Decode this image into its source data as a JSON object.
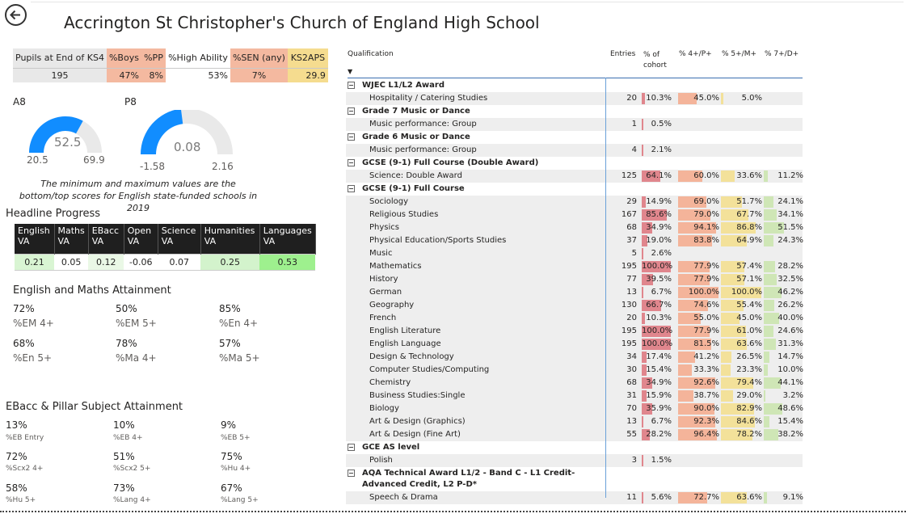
{
  "header": {
    "title": "Accrington St Christopher's Church of England High School"
  },
  "pupils": {
    "headers": [
      "Pupils at End of KS4",
      "%Boys",
      "%PP",
      "%High Ability",
      "%SEN (any)",
      "KS2APS"
    ],
    "values": [
      "195",
      "47%",
      "8%",
      "53%",
      "7%",
      "29.9"
    ],
    "colors": {
      "grey": "#e8e8e8",
      "orange": "#f4b9a0",
      "yellow": "#f5dc8f"
    }
  },
  "gauges": {
    "a8": {
      "label": "A8",
      "value": "52.5",
      "min": "20.5",
      "max": "69.9",
      "fill": 0.66
    },
    "p8": {
      "label": "P8",
      "value": "0.08",
      "min": "-1.58",
      "max": "2.16",
      "fill": 0.46
    },
    "note": "The minimum and maximum values are the bottom/top scores for English state-funded schools in 2019",
    "colors": {
      "fill": "#118dff",
      "track": "#e9e9e9"
    }
  },
  "headline": {
    "title": "Headline Progress",
    "columns": [
      "English VA",
      "Maths VA",
      "EBacc VA",
      "Open VA",
      "Science VA",
      "Humanities VA",
      "Languages VA"
    ],
    "values": [
      "0.21",
      "0.05",
      "0.12",
      "-0.06",
      "0.07",
      "0.25",
      "0.53"
    ]
  },
  "em": {
    "title": "English and Maths Attainment",
    "items": [
      {
        "value": "72%",
        "label": "%EM 4+"
      },
      {
        "value": "50%",
        "label": "%EM 5+"
      },
      {
        "value": "85%",
        "label": "%En 4+"
      },
      {
        "value": "68%",
        "label": "%En 5+"
      },
      {
        "value": "78%",
        "label": "%Ma 4+"
      },
      {
        "value": "57%",
        "label": "%Ma 5+"
      }
    ]
  },
  "ebacc": {
    "title": "EBacc & Pillar Subject Attainment",
    "items": [
      {
        "value": "13%",
        "label": "%EB Entry"
      },
      {
        "value": "10%",
        "label": "%EB 4+"
      },
      {
        "value": "9%",
        "label": "%EB 5+"
      },
      {
        "value": "72%",
        "label": "%Scx2 4+"
      },
      {
        "value": "51%",
        "label": "%Scx2 5+"
      },
      {
        "value": "75%",
        "label": "%Hu 4+"
      },
      {
        "value": "58%",
        "label": "%Hu 5+"
      },
      {
        "value": "73%",
        "label": "%Lang 4+"
      },
      {
        "value": "67%",
        "label": "%Lang 5+"
      }
    ]
  },
  "matrix": {
    "headers": {
      "qualification": "Qualification",
      "entries": "Entries",
      "cohort": "% of cohort",
      "p4": "% 4+/P+",
      "p5": "% 5+/M+",
      "p7": "% 7+/D+"
    },
    "colors": {
      "cohort": "#e0868d",
      "p4": "#f4b49a",
      "p5": "#f3e19a",
      "p7": "#cfe6b6"
    },
    "rows": [
      {
        "type": "group",
        "name": "WJEC L1/L2 Award"
      },
      {
        "type": "item",
        "name": "Hospitality / Catering Studies",
        "entries": "20",
        "cohort": "10.3%",
        "p4": "45.0%",
        "p5": "5.0%",
        "p7": "",
        "c": 10.3,
        "a": 45.0,
        "b": 5.0,
        "d": 0
      },
      {
        "type": "group",
        "name": "Grade 7 Music or Dance"
      },
      {
        "type": "item",
        "name": "Music performance: Group",
        "entries": "1",
        "cohort": "0.5%",
        "p4": "",
        "p5": "",
        "p7": "",
        "c": 0.5,
        "a": 0,
        "b": 0,
        "d": 0
      },
      {
        "type": "group",
        "name": "Grade 6 Music or Dance"
      },
      {
        "type": "item",
        "name": "Music performance: Group",
        "entries": "4",
        "cohort": "2.1%",
        "p4": "",
        "p5": "",
        "p7": "",
        "c": 2.1,
        "a": 0,
        "b": 0,
        "d": 0
      },
      {
        "type": "group",
        "name": "GCSE (9-1) Full Course (Double Award)"
      },
      {
        "type": "item",
        "name": "Science: Double Award",
        "entries": "125",
        "cohort": "64.1%",
        "p4": "60.0%",
        "p5": "33.6%",
        "p7": "11.2%",
        "c": 64.1,
        "a": 60.0,
        "b": 33.6,
        "d": 11.2
      },
      {
        "type": "group",
        "name": "GCSE (9-1) Full Course"
      },
      {
        "type": "item",
        "name": "Sociology",
        "entries": "29",
        "cohort": "14.9%",
        "p4": "69.0%",
        "p5": "51.7%",
        "p7": "24.1%",
        "c": 14.9,
        "a": 69.0,
        "b": 51.7,
        "d": 24.1
      },
      {
        "type": "item",
        "name": "Religious Studies",
        "entries": "167",
        "cohort": "85.6%",
        "p4": "79.0%",
        "p5": "67.7%",
        "p7": "34.1%",
        "c": 85.6,
        "a": 79.0,
        "b": 67.7,
        "d": 34.1
      },
      {
        "type": "item",
        "name": "Physics",
        "entries": "68",
        "cohort": "34.9%",
        "p4": "94.1%",
        "p5": "86.8%",
        "p7": "51.5%",
        "c": 34.9,
        "a": 94.1,
        "b": 86.8,
        "d": 51.5
      },
      {
        "type": "item",
        "name": "Physical Education/Sports Studies",
        "entries": "37",
        "cohort": "19.0%",
        "p4": "83.8%",
        "p5": "64.9%",
        "p7": "24.3%",
        "c": 19.0,
        "a": 83.8,
        "b": 64.9,
        "d": 24.3
      },
      {
        "type": "item",
        "name": "Music",
        "entries": "5",
        "cohort": "2.6%",
        "p4": "",
        "p5": "",
        "p7": "",
        "c": 2.6,
        "a": 0,
        "b": 0,
        "d": 0
      },
      {
        "type": "item",
        "name": "Mathematics",
        "entries": "195",
        "cohort": "100.0%",
        "p4": "77.9%",
        "p5": "57.4%",
        "p7": "28.2%",
        "c": 100.0,
        "a": 77.9,
        "b": 57.4,
        "d": 28.2
      },
      {
        "type": "item",
        "name": "History",
        "entries": "77",
        "cohort": "39.5%",
        "p4": "77.9%",
        "p5": "57.1%",
        "p7": "32.5%",
        "c": 39.5,
        "a": 77.9,
        "b": 57.1,
        "d": 32.5
      },
      {
        "type": "item",
        "name": "German",
        "entries": "13",
        "cohort": "6.7%",
        "p4": "100.0%",
        "p5": "100.0%",
        "p7": "46.2%",
        "c": 6.7,
        "a": 100.0,
        "b": 100.0,
        "d": 46.2
      },
      {
        "type": "item",
        "name": "Geography",
        "entries": "130",
        "cohort": "66.7%",
        "p4": "74.6%",
        "p5": "55.4%",
        "p7": "26.2%",
        "c": 66.7,
        "a": 74.6,
        "b": 55.4,
        "d": 26.2
      },
      {
        "type": "item",
        "name": "French",
        "entries": "20",
        "cohort": "10.3%",
        "p4": "55.0%",
        "p5": "45.0%",
        "p7": "40.0%",
        "c": 10.3,
        "a": 55.0,
        "b": 45.0,
        "d": 40.0
      },
      {
        "type": "item",
        "name": "English Literature",
        "entries": "195",
        "cohort": "100.0%",
        "p4": "77.9%",
        "p5": "61.0%",
        "p7": "24.6%",
        "c": 100.0,
        "a": 77.9,
        "b": 61.0,
        "d": 24.6
      },
      {
        "type": "item",
        "name": "English Language",
        "entries": "195",
        "cohort": "100.0%",
        "p4": "81.5%",
        "p5": "63.6%",
        "p7": "31.3%",
        "c": 100.0,
        "a": 81.5,
        "b": 63.6,
        "d": 31.3
      },
      {
        "type": "item",
        "name": "Design & Technology",
        "entries": "34",
        "cohort": "17.4%",
        "p4": "41.2%",
        "p5": "26.5%",
        "p7": "14.7%",
        "c": 17.4,
        "a": 41.2,
        "b": 26.5,
        "d": 14.7
      },
      {
        "type": "item",
        "name": "Computer Studies/Computing",
        "entries": "30",
        "cohort": "15.4%",
        "p4": "33.3%",
        "p5": "23.3%",
        "p7": "10.0%",
        "c": 15.4,
        "a": 33.3,
        "b": 23.3,
        "d": 10.0
      },
      {
        "type": "item",
        "name": "Chemistry",
        "entries": "68",
        "cohort": "34.9%",
        "p4": "92.6%",
        "p5": "79.4%",
        "p7": "44.1%",
        "c": 34.9,
        "a": 92.6,
        "b": 79.4,
        "d": 44.1
      },
      {
        "type": "item",
        "name": "Business Studies:Single",
        "entries": "31",
        "cohort": "15.9%",
        "p4": "38.7%",
        "p5": "29.0%",
        "p7": "3.2%",
        "c": 15.9,
        "a": 38.7,
        "b": 29.0,
        "d": 3.2
      },
      {
        "type": "item",
        "name": "Biology",
        "entries": "70",
        "cohort": "35.9%",
        "p4": "90.0%",
        "p5": "82.9%",
        "p7": "48.6%",
        "c": 35.9,
        "a": 90.0,
        "b": 82.9,
        "d": 48.6
      },
      {
        "type": "item",
        "name": "Art & Design (Graphics)",
        "entries": "13",
        "cohort": "6.7%",
        "p4": "92.3%",
        "p5": "84.6%",
        "p7": "15.4%",
        "c": 6.7,
        "a": 92.3,
        "b": 84.6,
        "d": 15.4
      },
      {
        "type": "item",
        "name": "Art & Design (Fine Art)",
        "entries": "55",
        "cohort": "28.2%",
        "p4": "96.4%",
        "p5": "78.2%",
        "p7": "38.2%",
        "c": 28.2,
        "a": 96.4,
        "b": 78.2,
        "d": 38.2
      },
      {
        "type": "group",
        "name": "GCE AS level"
      },
      {
        "type": "item",
        "name": "Polish",
        "entries": "3",
        "cohort": "1.5%",
        "p4": "",
        "p5": "",
        "p7": "",
        "c": 1.5,
        "a": 0,
        "b": 0,
        "d": 0
      },
      {
        "type": "group",
        "name": "AQA Technical Award L1/2 - Band C - L1 Credit-Advanced Credit, L2 P-D*",
        "tall": true
      },
      {
        "type": "item",
        "name": "Speech & Drama",
        "entries": "11",
        "cohort": "5.6%",
        "p4": "72.7%",
        "p5": "63.6%",
        "p7": "9.1%",
        "c": 5.6,
        "a": 72.7,
        "b": 63.6,
        "d": 9.1
      }
    ]
  }
}
